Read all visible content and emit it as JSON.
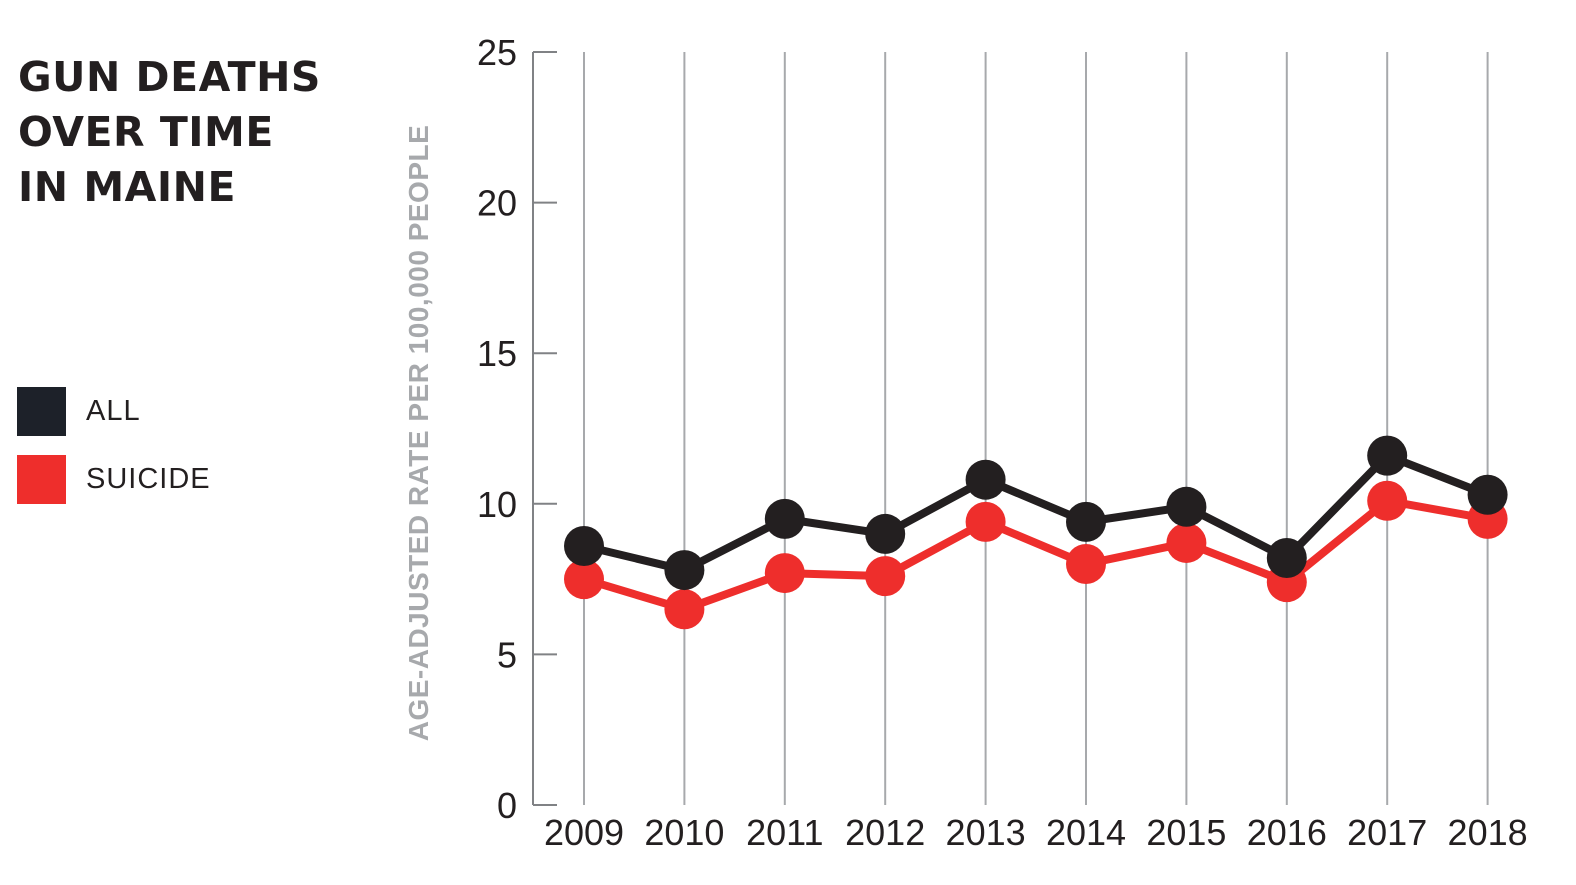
{
  "title_lines": [
    "GUN DEATHS",
    "OVER TIME",
    "IN MAINE"
  ],
  "legend": [
    {
      "label": "ALL",
      "color": "#1d2129"
    },
    {
      "label": "SUICIDE",
      "color": "#ee2e2c"
    }
  ],
  "colors": {
    "grid": "#a7a9ac",
    "axis": "#808285",
    "text": "#231f20",
    "ylabel": "#a7a9ac"
  },
  "chart_data": {
    "type": "line",
    "title": "GUN DEATHS OVER TIME IN MAINE",
    "xlabel": "",
    "ylabel": "AGE-ADJUSTED RATE PER 100,000 PEOPLE",
    "x": [
      "2009",
      "2010",
      "2011",
      "2012",
      "2013",
      "2014",
      "2015",
      "2016",
      "2017",
      "2018"
    ],
    "ylim": [
      0,
      25
    ],
    "yticks": [
      0,
      5,
      10,
      15,
      20,
      25
    ],
    "grid": "vertical",
    "legend_position": "left",
    "series": [
      {
        "name": "ALL",
        "color": "#231f20",
        "values": [
          8.6,
          7.8,
          9.5,
          9.0,
          10.8,
          9.4,
          9.9,
          8.2,
          11.6,
          10.3
        ]
      },
      {
        "name": "SUICIDE",
        "color": "#ee2e2c",
        "values": [
          7.5,
          6.5,
          7.7,
          7.6,
          9.4,
          8.0,
          8.7,
          7.4,
          10.1,
          9.5
        ]
      }
    ]
  }
}
